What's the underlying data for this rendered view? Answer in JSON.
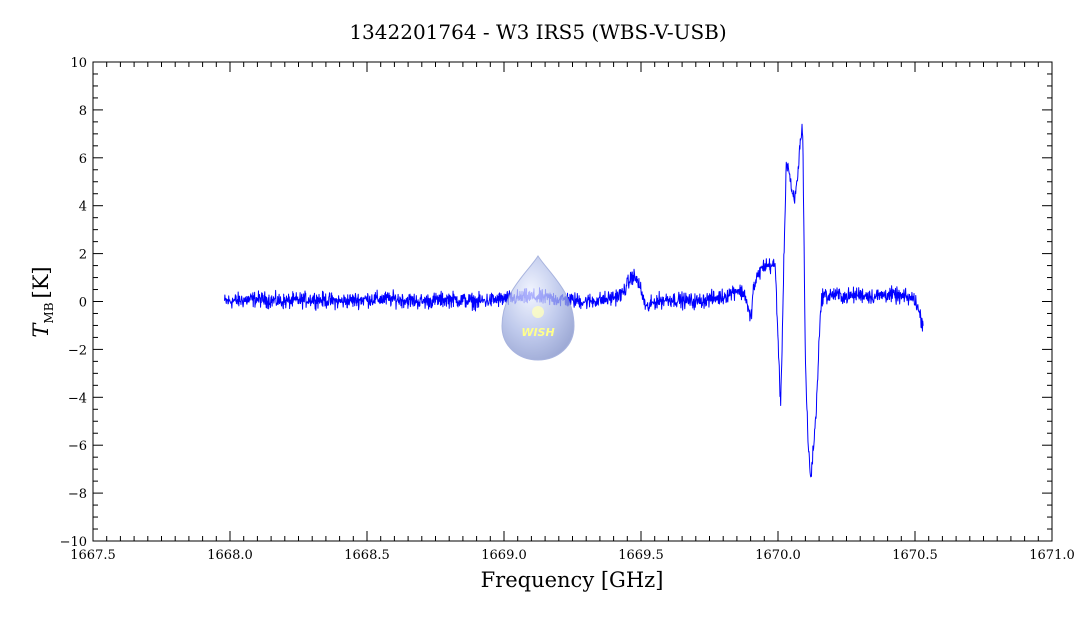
{
  "chart_data": {
    "type": "line",
    "title": "1342201764 - W3 IRS5 (WBS-V-USB)",
    "xlabel": "Frequency [GHz]",
    "ylabel": {
      "main": "T",
      "sub": "MB",
      "unit": "[K]"
    },
    "xlim": [
      1667.5,
      1671.0
    ],
    "ylim": [
      -10,
      10
    ],
    "x_ticks": [
      1667.5,
      1668.0,
      1668.5,
      1669.0,
      1669.5,
      1670.0,
      1670.5,
      1671.0
    ],
    "x_tick_labels": [
      "1667.5",
      "1668.0",
      "1668.5",
      "1669.0",
      "1669.5",
      "1670.0",
      "1670.5",
      "1671.0"
    ],
    "y_ticks": [
      -10,
      -8,
      -6,
      -4,
      -2,
      0,
      2,
      4,
      6,
      8,
      10
    ],
    "y_tick_labels": [
      "−10",
      "−8",
      "−6",
      "−4",
      "−2",
      "0",
      "2",
      "4",
      "6",
      "8",
      "10"
    ],
    "grid": false,
    "series": [
      {
        "color": "#0000ff",
        "x": [
          1667.98,
          1668.1,
          1668.2,
          1668.3,
          1668.4,
          1668.5,
          1668.6,
          1668.7,
          1668.8,
          1668.9,
          1669.0,
          1669.1,
          1669.2,
          1669.3,
          1669.38,
          1669.43,
          1669.47,
          1669.49,
          1669.52,
          1669.55,
          1669.6,
          1669.7,
          1669.8,
          1669.85,
          1669.88,
          1669.9,
          1669.91,
          1669.93,
          1669.95,
          1669.97,
          1669.99,
          1670.01,
          1670.02,
          1670.03,
          1670.04,
          1670.05,
          1670.06,
          1670.07,
          1670.08,
          1670.09,
          1670.1,
          1670.11,
          1670.12,
          1670.13,
          1670.14,
          1670.15,
          1670.16,
          1670.17,
          1670.18,
          1670.2,
          1670.25,
          1670.3,
          1670.35,
          1670.4,
          1670.45,
          1670.5,
          1670.53
        ],
        "values": [
          0.0,
          0.1,
          0.0,
          0.1,
          0.0,
          0.1,
          0.1,
          0.0,
          0.1,
          0.0,
          0.1,
          0.2,
          0.1,
          0.0,
          0.1,
          0.3,
          1.1,
          0.8,
          -0.3,
          0.0,
          0.1,
          0.0,
          0.2,
          0.5,
          0.3,
          -0.8,
          0.5,
          1.2,
          1.5,
          1.5,
          1.5,
          -4.5,
          1.0,
          5.8,
          5.5,
          4.5,
          4.2,
          5.0,
          6.5,
          7.4,
          -2.5,
          -6.0,
          -7.4,
          -6.0,
          -4.5,
          -1.5,
          0.2,
          0.3,
          0.2,
          0.3,
          0.2,
          0.3,
          0.2,
          0.3,
          0.2,
          0.1,
          -1.0
        ]
      }
    ]
  },
  "watermark": {
    "text": "WISH"
  }
}
